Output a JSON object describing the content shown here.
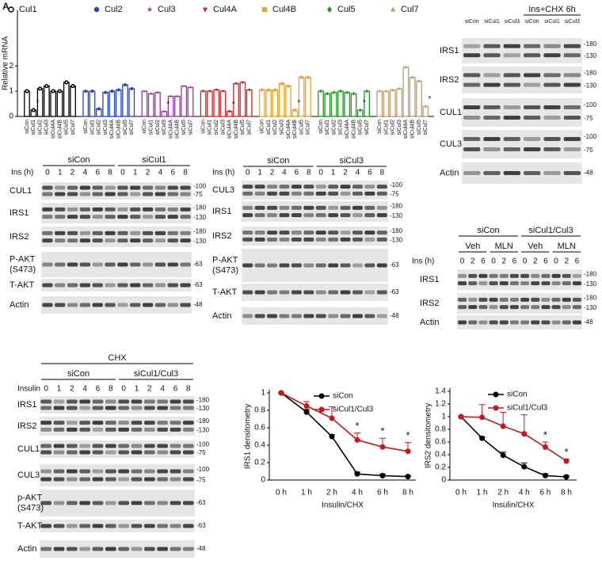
{
  "panel_label": "A",
  "chart_data": [
    {
      "type": "bar",
      "y_label": "Relative mRNA",
      "ylim": [
        0,
        4.2
      ],
      "yticks": [
        0,
        1,
        2
      ],
      "categories": [
        "siCon",
        "siCul1",
        "siCul2",
        "siCul3",
        "siCul4A",
        "siCul4B",
        "siCul5",
        "siCul7"
      ],
      "series": [
        {
          "name": "Cul1",
          "color": "#000000",
          "marker": "circle-open",
          "values": [
            1.0,
            0.25,
            1.1,
            1.2,
            1.0,
            1.0,
            1.35,
            1.2
          ]
        },
        {
          "name": "Cul2",
          "color": "#1f3fe0",
          "marker": "circle",
          "values": [
            1.0,
            1.0,
            0.3,
            0.95,
            1.0,
            1.05,
            1.25,
            1.1
          ]
        },
        {
          "name": "Cul3",
          "color": "#9b30b0",
          "marker": "star",
          "values": [
            1.0,
            0.9,
            0.95,
            0.2,
            0.8,
            0.8,
            1.2,
            1.15
          ]
        },
        {
          "name": "Cul4A",
          "color": "#e41a1c",
          "marker": "triangle-down",
          "values": [
            1.0,
            1.0,
            1.05,
            1.0,
            0.2,
            1.3,
            1.35,
            1.05
          ]
        },
        {
          "name": "Cul4B",
          "color": "#f5a020",
          "marker": "square",
          "values": [
            1.05,
            1.05,
            1.05,
            1.3,
            1.2,
            0.25,
            1.55,
            1.55
          ]
        },
        {
          "name": "Cul5",
          "color": "#1a9a1a",
          "marker": "diamond",
          "values": [
            1.0,
            0.9,
            0.95,
            1.0,
            0.95,
            0.9,
            0.25,
            1.0
          ]
        },
        {
          "name": "Cul7",
          "color": "#c49a6c",
          "marker": "triangle-up",
          "values": [
            1.0,
            1.0,
            1.05,
            1.1,
            1.95,
            1.55,
            1.4,
            0.4
          ]
        }
      ],
      "annotations": [
        {
          "series": "Cul1",
          "category": "siCul1",
          "text": "*"
        },
        {
          "series": "Cul3",
          "category": "siCul3",
          "text": "*"
        },
        {
          "series": "Cul4A",
          "category": "siCul4A",
          "text": "*"
        },
        {
          "series": "Cul4B",
          "category": "siCul4B",
          "text": "*"
        },
        {
          "series": "Cul5",
          "category": "siCul5",
          "text": "*"
        },
        {
          "series": "Cul7",
          "category": "siCul7",
          "text": "*"
        }
      ]
    },
    {
      "type": "line",
      "y_label": "IRS1 densitometry",
      "x_label": "Insulin/CHX",
      "ylim": [
        0,
        1
      ],
      "yticks": [
        0,
        0.2,
        0.4,
        0.6,
        0.8,
        1
      ],
      "categories": [
        "0 h",
        "1 h",
        "2 h",
        "4 h",
        "6 h",
        "8 h"
      ],
      "series": [
        {
          "name": "siCon",
          "color": "#000000",
          "values": [
            1,
            0.78,
            0.5,
            0.07,
            0.05,
            0.04
          ],
          "errors": [
            0,
            0.03,
            0.02,
            0.02,
            0.02,
            0.01
          ]
        },
        {
          "name": "siCul1/Cul3",
          "color": "#c8161d",
          "values": [
            1,
            0.85,
            0.71,
            0.46,
            0.38,
            0.33
          ],
          "errors": [
            0,
            0.05,
            0.13,
            0.08,
            0.1,
            0.1
          ]
        }
      ],
      "annotations": [
        {
          "category": "4 h",
          "text": "*"
        },
        {
          "category": "6 h",
          "text": "*"
        },
        {
          "category": "8 h",
          "text": "*"
        }
      ]
    },
    {
      "type": "line",
      "y_label": "IRS2 densitometry",
      "x_label": "Insulin/CHX",
      "ylim": [
        0,
        1.4
      ],
      "yticks": [
        0,
        0.2,
        0.4,
        0.6,
        0.8,
        1,
        1.2,
        1.4
      ],
      "categories": [
        "0 h",
        "1 h",
        "2 h",
        "4 h",
        "6 h",
        "8 h"
      ],
      "series": [
        {
          "name": "siCon",
          "color": "#000000",
          "values": [
            1,
            0.66,
            0.39,
            0.21,
            0.07,
            0.05
          ],
          "errors": [
            0,
            0.02,
            0.05,
            0.06,
            0.03,
            0.02
          ]
        },
        {
          "name": "siCul1/Cul3",
          "color": "#c8161d",
          "values": [
            1,
            0.99,
            0.85,
            0.73,
            0.52,
            0.3
          ],
          "errors": [
            0,
            0.2,
            0.22,
            0.3,
            0.08,
            0.03
          ]
        }
      ],
      "annotations": [
        {
          "category": "6 h",
          "text": "*"
        },
        {
          "category": "8 h",
          "text": "*"
        }
      ]
    }
  ],
  "blots": [
    {
      "groups": [
        {
          "name": null,
          "lanes": [
            "siCon",
            "siCul1",
            "siCul3"
          ]
        },
        {
          "name": "Ins+CHX 6h",
          "lanes": [
            "siCon",
            "siCul1",
            "siCul3"
          ]
        }
      ],
      "rows": [
        {
          "label": [
            "IRS1"
          ],
          "markers": [
            "-180",
            "-130"
          ]
        },
        {
          "label": [
            "IRS2"
          ],
          "markers": [
            "-180",
            "-130"
          ]
        },
        {
          "label": [
            "CUL1"
          ],
          "markers": [
            "-100",
            "-75"
          ]
        },
        {
          "label": [
            "CUL3"
          ],
          "markers": [
            "-100",
            "-75"
          ]
        },
        {
          "label": [
            "Actin"
          ],
          "markers": [
            "-48"
          ]
        }
      ]
    },
    {
      "lane_title": "Ins (h)",
      "groups": [
        {
          "name": "siCon",
          "lanes": [
            "0",
            "1",
            "2",
            "4",
            "6",
            "8"
          ]
        },
        {
          "name": "siCul1",
          "lanes": [
            "0",
            "1",
            "2",
            "4",
            "6",
            "8"
          ]
        }
      ],
      "rows": [
        {
          "label": [
            "CUL1"
          ],
          "markers": [
            "-100",
            "-75"
          ]
        },
        {
          "label": [
            "IRS1"
          ],
          "markers": [
            "-180",
            "-130"
          ]
        },
        {
          "label": [
            "IRS2"
          ],
          "markers": [
            "-180",
            "-130"
          ]
        },
        {
          "label": [
            "P-AKT",
            "(S473)"
          ],
          "markers": [
            "-63"
          ]
        },
        {
          "label": [
            "T-AKT"
          ],
          "markers": [
            "-63"
          ]
        },
        {
          "label": [
            "Actin"
          ],
          "markers": [
            "-48"
          ]
        }
      ]
    },
    {
      "lane_title": "Ins (h)",
      "groups": [
        {
          "name": "siCon",
          "lanes": [
            "0",
            "1",
            "2",
            "4",
            "6",
            "8"
          ]
        },
        {
          "name": "siCul3",
          "lanes": [
            "0",
            "1",
            "2",
            "4",
            "6",
            "8"
          ]
        }
      ],
      "rows": [
        {
          "label": [
            "CUL3"
          ],
          "markers": [
            "-100",
            "-75"
          ]
        },
        {
          "label": [
            "IRS1"
          ],
          "markers": [
            "-180",
            "-130"
          ]
        },
        {
          "label": [
            "IRS2"
          ],
          "markers": [
            "-180",
            "-130"
          ]
        },
        {
          "label": [
            "P-AKT",
            "(S473)"
          ],
          "markers": [
            "-63"
          ]
        },
        {
          "label": [
            "T-AKT"
          ],
          "markers": [
            "-63"
          ]
        },
        {
          "label": [
            "Actin"
          ],
          "markers": [
            "-48"
          ]
        }
      ]
    },
    {
      "lane_title": "Ins (h)",
      "groups": [
        {
          "name": "siCon",
          "subgroups": [
            {
              "name": "Veh",
              "lanes": [
                "0",
                "2",
                "6"
              ]
            },
            {
              "name": "MLN",
              "lanes": [
                "0",
                "2",
                "6"
              ]
            }
          ]
        },
        {
          "name": "siCul1/Cul3",
          "subgroups": [
            {
              "name": "Veh",
              "lanes": [
                "0",
                "2",
                "6"
              ]
            },
            {
              "name": "MLN",
              "lanes": [
                "0",
                "2",
                "6"
              ]
            }
          ]
        }
      ],
      "rows": [
        {
          "label": [
            "IRS1"
          ],
          "markers": [
            "-180",
            "-130"
          ]
        },
        {
          "label": [
            "IRS2"
          ],
          "markers": [
            "-180",
            "-130"
          ]
        },
        {
          "label": [
            "Actin"
          ],
          "markers": [
            "-48"
          ]
        }
      ]
    },
    {
      "super_title": "CHX",
      "lane_title": "Insulin",
      "groups": [
        {
          "name": "siCon",
          "lanes": [
            "0",
            "1",
            "2",
            "4",
            "6",
            "8"
          ]
        },
        {
          "name": "siCul1/Cul3",
          "lanes": [
            "0",
            "1",
            "2",
            "4",
            "6",
            "8"
          ]
        }
      ],
      "rows": [
        {
          "label": [
            "IRS1"
          ],
          "markers": [
            "-180",
            "-130"
          ]
        },
        {
          "label": [
            "IRS2"
          ],
          "markers": [
            "-180",
            "-130"
          ]
        },
        {
          "label": [
            "CUL1"
          ],
          "markers": [
            "-100",
            "-75"
          ]
        },
        {
          "label": [
            "CUL3"
          ],
          "markers": [
            "-100",
            "-75"
          ]
        },
        {
          "label": [
            "p-AKT",
            "(S473)"
          ],
          "markers": [
            "-63"
          ]
        },
        {
          "label": [
            "T-AKT"
          ],
          "markers": [
            "-63"
          ]
        },
        {
          "label": [
            "Actin"
          ],
          "markers": [
            "-48"
          ]
        }
      ]
    }
  ]
}
